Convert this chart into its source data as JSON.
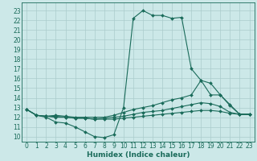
{
  "title": "",
  "xlabel": "Humidex (Indice chaleur)",
  "bg_color": "#cce8e8",
  "grid_color": "#aacccc",
  "line_color": "#1a6b5a",
  "xlim": [
    -0.5,
    23.5
  ],
  "ylim": [
    9.5,
    23.8
  ],
  "yticks": [
    10,
    11,
    12,
    13,
    14,
    15,
    16,
    17,
    18,
    19,
    20,
    21,
    22,
    23
  ],
  "xticks": [
    0,
    1,
    2,
    3,
    4,
    5,
    6,
    7,
    8,
    9,
    10,
    11,
    12,
    13,
    14,
    15,
    16,
    17,
    18,
    19,
    20,
    21,
    22,
    23
  ],
  "line1_x": [
    0,
    1,
    2,
    3,
    4,
    5,
    6,
    7,
    8,
    9,
    10,
    11,
    12,
    13,
    14,
    15,
    16,
    17,
    18,
    19,
    20,
    21,
    22,
    23
  ],
  "line1_y": [
    12.8,
    12.2,
    12.0,
    11.5,
    11.4,
    11.0,
    10.5,
    10.0,
    9.9,
    10.2,
    13.0,
    22.2,
    23.0,
    22.5,
    22.5,
    22.2,
    22.3,
    17.0,
    15.8,
    14.3,
    14.3,
    13.3,
    12.3,
    12.3
  ],
  "line2_x": [
    0,
    1,
    2,
    3,
    4,
    5,
    6,
    7,
    8,
    9,
    10,
    11,
    12,
    13,
    14,
    15,
    16,
    17,
    18,
    19,
    20,
    21,
    22,
    23
  ],
  "line2_y": [
    12.8,
    12.2,
    12.1,
    12.2,
    12.1,
    12.0,
    12.0,
    12.0,
    12.0,
    12.2,
    12.5,
    12.8,
    13.0,
    13.2,
    13.5,
    13.8,
    14.0,
    14.3,
    15.8,
    15.5,
    14.3,
    13.2,
    12.3,
    12.3
  ],
  "line3_x": [
    0,
    1,
    2,
    3,
    4,
    5,
    6,
    7,
    8,
    9,
    10,
    11,
    12,
    13,
    14,
    15,
    16,
    17,
    18,
    19,
    20,
    21,
    22,
    23
  ],
  "line3_y": [
    12.8,
    12.2,
    12.1,
    12.0,
    12.0,
    11.9,
    11.9,
    11.8,
    11.8,
    11.8,
    11.9,
    12.0,
    12.1,
    12.2,
    12.3,
    12.4,
    12.5,
    12.6,
    12.7,
    12.7,
    12.6,
    12.4,
    12.3,
    12.3
  ],
  "line4_x": [
    0,
    1,
    2,
    3,
    4,
    5,
    6,
    7,
    8,
    9,
    10,
    11,
    12,
    13,
    14,
    15,
    16,
    17,
    18,
    19,
    20,
    21,
    22,
    23
  ],
  "line4_y": [
    12.8,
    12.2,
    12.1,
    12.1,
    12.0,
    11.9,
    11.9,
    11.8,
    11.9,
    12.0,
    12.1,
    12.3,
    12.5,
    12.6,
    12.7,
    12.9,
    13.1,
    13.3,
    13.5,
    13.4,
    13.1,
    12.5,
    12.3,
    12.3
  ],
  "tick_fontsize": 5.5,
  "xlabel_fontsize": 6.5,
  "marker_size": 2.0,
  "line_width": 0.8
}
